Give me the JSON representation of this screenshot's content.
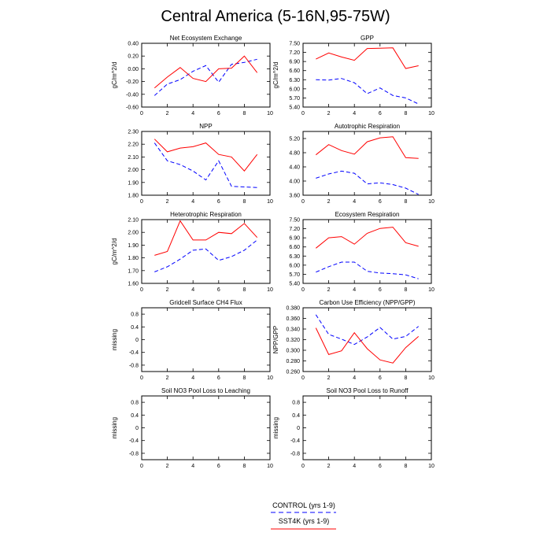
{
  "title": "Central America (5-16N,95-75W)",
  "colors": {
    "control": "#0000ff",
    "sst4k": "#ff0000",
    "axis": "#000000"
  },
  "legend": {
    "control_label": "CONTROL (yrs 1-9)",
    "sst4k_label": "SST4K (yrs 1-9)"
  },
  "chart_data": [
    {
      "type": "line",
      "title": "Net Ecosystem Exchange",
      "ylabel": "gC/m^2/d",
      "xlim": [
        0,
        10
      ],
      "xticks": [
        0,
        2,
        4,
        6,
        8,
        10
      ],
      "xtick_labels": [
        "0",
        "2",
        "4",
        "6",
        "8",
        "10"
      ],
      "ylim": [
        -0.6,
        0.4
      ],
      "yticks": [
        -0.6,
        -0.4,
        -0.2,
        0.0,
        0.2,
        0.4
      ],
      "ytick_labels": [
        "-0.60",
        "-0.40",
        "-0.20",
        "0.00",
        "0.20",
        "0.40"
      ],
      "x": [
        1,
        2,
        3,
        4,
        5,
        6,
        7,
        8,
        9
      ],
      "series": [
        {
          "name": "CONTROL (yrs 1-9)",
          "style": "dashed",
          "values": [
            -0.42,
            -0.24,
            -0.17,
            -0.04,
            0.05,
            -0.21,
            0.07,
            0.1,
            0.15
          ]
        },
        {
          "name": "SST4K (yrs 1-9)",
          "style": "solid",
          "values": [
            -0.3,
            -0.13,
            0.02,
            -0.15,
            -0.2,
            0.0,
            0.01,
            0.2,
            -0.06
          ]
        }
      ]
    },
    {
      "type": "line",
      "title": "GPP",
      "ylabel": "gC/m^2/d",
      "xlim": [
        0,
        10
      ],
      "xticks": [
        0,
        2,
        4,
        6,
        8,
        10
      ],
      "xtick_labels": [
        "0",
        "2",
        "4",
        "6",
        "8",
        "10"
      ],
      "ylim": [
        5.4,
        7.5
      ],
      "yticks": [
        5.4,
        5.7,
        6.0,
        6.3,
        6.6,
        6.9,
        7.2,
        7.5
      ],
      "ytick_labels": [
        "5.40",
        "5.70",
        "6.00",
        "6.30",
        "6.60",
        "6.90",
        "7.20",
        "7.50"
      ],
      "x": [
        1,
        2,
        3,
        4,
        5,
        6,
        7,
        8,
        9
      ],
      "series": [
        {
          "name": "CONTROL (yrs 1-9)",
          "style": "dashed",
          "values": [
            6.3,
            6.29,
            6.34,
            6.2,
            5.84,
            6.03,
            5.78,
            5.7,
            5.5
          ]
        },
        {
          "name": "SST4K (yrs 1-9)",
          "style": "solid",
          "values": [
            6.98,
            7.18,
            7.05,
            6.94,
            7.33,
            7.34,
            7.35,
            6.67,
            6.76
          ]
        }
      ]
    },
    {
      "type": "line",
      "title": "NPP",
      "ylabel": "",
      "xlim": [
        0,
        10
      ],
      "xticks": [
        0,
        2,
        4,
        6,
        8,
        10
      ],
      "xtick_labels": [
        "0",
        "2",
        "4",
        "6",
        "8",
        "10"
      ],
      "ylim": [
        1.8,
        2.3
      ],
      "yticks": [
        1.8,
        1.9,
        2.0,
        2.1,
        2.2,
        2.3
      ],
      "ytick_labels": [
        "1.80",
        "1.90",
        "2.00",
        "2.10",
        "2.20",
        "2.30"
      ],
      "x": [
        1,
        2,
        3,
        4,
        5,
        6,
        7,
        8,
        9
      ],
      "series": [
        {
          "name": "CONTROL (yrs 1-9)",
          "style": "dashed",
          "values": [
            2.21,
            2.07,
            2.04,
            1.99,
            1.92,
            2.07,
            1.87,
            1.865,
            1.86
          ]
        },
        {
          "name": "SST4K (yrs 1-9)",
          "style": "solid",
          "values": [
            2.24,
            2.14,
            2.17,
            2.18,
            2.21,
            2.12,
            2.1,
            1.99,
            2.12
          ]
        }
      ]
    },
    {
      "type": "line",
      "title": "Autotrophic Respiration",
      "ylabel": "",
      "xlim": [
        0,
        10
      ],
      "xticks": [
        0,
        2,
        4,
        6,
        8,
        10
      ],
      "xtick_labels": [
        "0",
        "2",
        "4",
        "6",
        "8",
        "10"
      ],
      "ylim": [
        3.6,
        5.4
      ],
      "yticks": [
        3.6,
        4.0,
        4.4,
        4.8,
        5.2
      ],
      "ytick_labels": [
        "3.60",
        "4.00",
        "4.40",
        "4.80",
        "5.20"
      ],
      "x": [
        1,
        2,
        3,
        4,
        5,
        6,
        7,
        8,
        9
      ],
      "series": [
        {
          "name": "CONTROL (yrs 1-9)",
          "style": "dashed",
          "values": [
            4.08,
            4.2,
            4.28,
            4.22,
            3.92,
            3.95,
            3.9,
            3.8,
            3.62
          ]
        },
        {
          "name": "SST4K (yrs 1-9)",
          "style": "solid",
          "values": [
            4.74,
            5.03,
            4.86,
            4.76,
            5.11,
            5.22,
            5.25,
            4.66,
            4.64
          ]
        }
      ]
    },
    {
      "type": "line",
      "title": "Heterotrophic Respiration",
      "ylabel": "gC/m^2/d",
      "xlim": [
        0,
        10
      ],
      "xticks": [
        0,
        2,
        4,
        6,
        8,
        10
      ],
      "xtick_labels": [
        "0",
        "2",
        "4",
        "6",
        "8",
        "10"
      ],
      "ylim": [
        1.6,
        2.1
      ],
      "yticks": [
        1.6,
        1.7,
        1.8,
        1.9,
        2.0,
        2.1
      ],
      "ytick_labels": [
        "1.60",
        "1.70",
        "1.80",
        "1.90",
        "2.00",
        "2.10"
      ],
      "x": [
        1,
        2,
        3,
        4,
        5,
        6,
        7,
        8,
        9
      ],
      "series": [
        {
          "name": "CONTROL (yrs 1-9)",
          "style": "dashed",
          "values": [
            1.69,
            1.73,
            1.79,
            1.86,
            1.87,
            1.78,
            1.81,
            1.86,
            1.94
          ]
        },
        {
          "name": "SST4K (yrs 1-9)",
          "style": "solid",
          "values": [
            1.82,
            1.85,
            2.09,
            1.94,
            1.94,
            2.0,
            1.99,
            2.07,
            1.96
          ]
        }
      ]
    },
    {
      "type": "line",
      "title": "Ecosystem Respiration",
      "ylabel": "",
      "xlim": [
        0,
        10
      ],
      "xticks": [
        0,
        2,
        4,
        6,
        8,
        10
      ],
      "xtick_labels": [
        "0",
        "2",
        "4",
        "6",
        "8",
        "10"
      ],
      "ylim": [
        5.4,
        7.5
      ],
      "yticks": [
        5.4,
        5.7,
        6.0,
        6.3,
        6.6,
        6.9,
        7.2,
        7.5
      ],
      "ytick_labels": [
        "5.40",
        "5.70",
        "6.00",
        "6.30",
        "6.60",
        "6.90",
        "7.20",
        "7.50"
      ],
      "x": [
        1,
        2,
        3,
        4,
        5,
        6,
        7,
        8,
        9
      ],
      "series": [
        {
          "name": "CONTROL (yrs 1-9)",
          "style": "dashed",
          "values": [
            5.77,
            5.95,
            6.1,
            6.1,
            5.8,
            5.74,
            5.72,
            5.68,
            5.55
          ]
        },
        {
          "name": "SST4K (yrs 1-9)",
          "style": "solid",
          "values": [
            6.56,
            6.9,
            6.94,
            6.69,
            7.05,
            7.21,
            7.25,
            6.74,
            6.62
          ]
        }
      ]
    },
    {
      "type": "line",
      "title": "Gridcell Surface CH4 Flux",
      "ylabel": "missing",
      "xlim": [
        0,
        10
      ],
      "xticks": [
        0,
        2,
        4,
        6,
        8,
        10
      ],
      "xtick_labels": [
        "0",
        "2",
        "4",
        "6",
        "8",
        "10"
      ],
      "ylim": [
        -1.0,
        1.0
      ],
      "yticks": [
        -0.8,
        -0.4,
        0,
        0.4,
        0.8
      ],
      "ytick_labels": [
        "-0.8",
        "-0.4",
        "0",
        "0.4",
        "0.8"
      ],
      "x": [],
      "series": []
    },
    {
      "type": "line",
      "title": "Carbon Use Efficiency (NPP/GPP)",
      "ylabel": "NPP/GPP",
      "xlim": [
        0,
        10
      ],
      "xticks": [
        0,
        2,
        4,
        6,
        8,
        10
      ],
      "xtick_labels": [
        "0",
        "2",
        "4",
        "6",
        "8",
        "10"
      ],
      "ylim": [
        0.26,
        0.38
      ],
      "yticks": [
        0.26,
        0.28,
        0.3,
        0.32,
        0.34,
        0.36,
        0.38
      ],
      "ytick_labels": [
        "0.260",
        "0.280",
        "0.300",
        "0.320",
        "0.340",
        "0.360",
        "0.380"
      ],
      "x": [
        1,
        2,
        3,
        4,
        5,
        6,
        7,
        8,
        9
      ],
      "series": [
        {
          "name": "CONTROL (yrs 1-9)",
          "style": "dashed",
          "values": [
            0.367,
            0.33,
            0.321,
            0.311,
            0.325,
            0.343,
            0.321,
            0.326,
            0.345
          ]
        },
        {
          "name": "SST4K (yrs 1-9)",
          "style": "solid",
          "values": [
            0.342,
            0.292,
            0.299,
            0.333,
            0.303,
            0.282,
            0.276,
            0.305,
            0.326
          ]
        }
      ]
    },
    {
      "type": "line",
      "title": "Soil NO3 Pool Loss to Leaching",
      "ylabel": "missing",
      "xlim": [
        0,
        10
      ],
      "xticks": [
        0,
        2,
        4,
        6,
        8,
        10
      ],
      "xtick_labels": [
        "0",
        "2",
        "4",
        "6",
        "8",
        "10"
      ],
      "ylim": [
        -1.0,
        1.0
      ],
      "yticks": [
        -0.8,
        -0.4,
        0,
        0.4,
        0.8
      ],
      "ytick_labels": [
        "-0.8",
        "-0.4",
        "0",
        "0.4",
        "0.8"
      ],
      "x": [],
      "series": []
    },
    {
      "type": "line",
      "title": "Soil NO3 Pool Loss to Runoff",
      "ylabel": "missing",
      "xlim": [
        0,
        10
      ],
      "xticks": [
        0,
        2,
        4,
        6,
        8,
        10
      ],
      "xtick_labels": [
        "0",
        "2",
        "4",
        "6",
        "8",
        "10"
      ],
      "ylim": [
        -1.0,
        1.0
      ],
      "yticks": [
        -0.8,
        -0.4,
        0,
        0.4,
        0.8
      ],
      "ytick_labels": [
        "-0.8",
        "-0.4",
        "0",
        "0.4",
        "0.8"
      ],
      "x": [],
      "series": []
    }
  ]
}
